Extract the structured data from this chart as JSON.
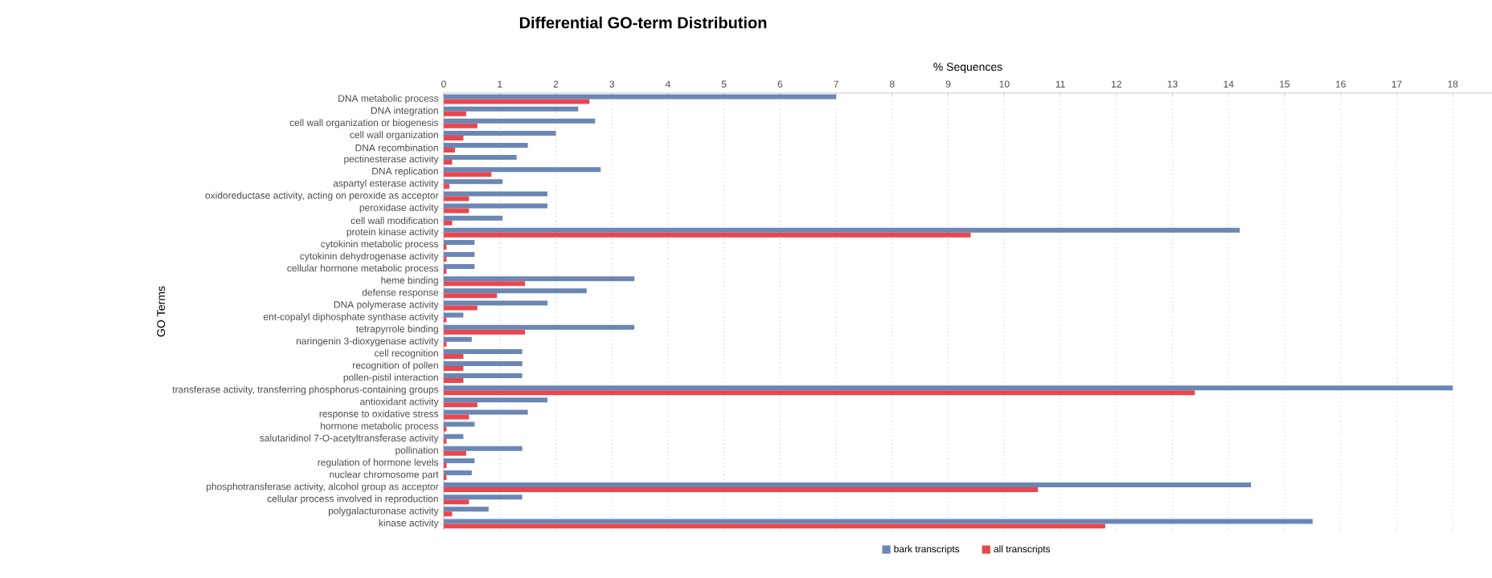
{
  "chart_data": {
    "type": "bar",
    "orientation": "horizontal",
    "title": "Differential GO-term Distribution",
    "xlabel": "% Sequences",
    "ylabel": "GO Terms",
    "categories": [
      "DNA metabolic process",
      "DNA integration",
      "cell wall organization or biogenesis",
      "cell wall organization",
      "DNA recombination",
      "pectinesterase activity",
      "DNA replication",
      "aspartyl esterase activity",
      "oxidoreductase activity, acting on peroxide as acceptor",
      "peroxidase activity",
      "cell wall modification",
      "protein kinase activity",
      "cytokinin metabolic process",
      "cytokinin dehydrogenase activity",
      "cellular hormone metabolic process",
      "heme binding",
      "defense response",
      "DNA polymerase activity",
      "ent-copalyl diphosphate synthase activity",
      "tetrapyrrole binding",
      "naringenin 3-dioxygenase activity",
      "cell recognition",
      "recognition of pollen",
      "pollen-pistil interaction",
      "transferase activity, transferring phosphorus-containing groups",
      "antioxidant activity",
      "response to oxidative stress",
      "hormone metabolic process",
      "salutaridinol 7-O-acetyltransferase activity",
      "pollination",
      "regulation of hormone levels",
      "nuclear chromosome part",
      "phosphotransferase activity, alcohol group as acceptor",
      "cellular process involved in reproduction",
      "polygalacturonase activity",
      "kinase activity"
    ],
    "series": [
      {
        "name": "bark transcripts",
        "color": "#6a86b4",
        "values": [
          7.0,
          2.4,
          2.7,
          2.0,
          1.5,
          1.3,
          2.8,
          1.05,
          1.85,
          1.85,
          1.05,
          14.2,
          0.55,
          0.55,
          0.55,
          3.4,
          2.55,
          1.85,
          0.35,
          3.4,
          0.5,
          1.4,
          1.4,
          1.4,
          18.0,
          1.85,
          1.5,
          0.55,
          0.35,
          1.4,
          0.55,
          0.5,
          14.4,
          1.4,
          0.8,
          15.5
        ]
      },
      {
        "name": "all transcripts",
        "color": "#e8474f",
        "values": [
          2.6,
          0.4,
          0.6,
          0.35,
          0.2,
          0.15,
          0.85,
          0.1,
          0.45,
          0.45,
          0.15,
          9.4,
          0.05,
          0.05,
          0.05,
          1.45,
          0.95,
          0.6,
          0.05,
          1.45,
          0.05,
          0.35,
          0.35,
          0.35,
          13.4,
          0.6,
          0.45,
          0.05,
          0.05,
          0.4,
          0.05,
          0.05,
          10.6,
          0.45,
          0.15,
          11.8
        ]
      }
    ],
    "xlim": [
      0,
      18.7
    ],
    "xticks": [
      0,
      1,
      2,
      3,
      4,
      5,
      6,
      7,
      8,
      9,
      10,
      11,
      12,
      13,
      14,
      15,
      16,
      17,
      18
    ],
    "grid": "x",
    "legend": "bottom"
  }
}
